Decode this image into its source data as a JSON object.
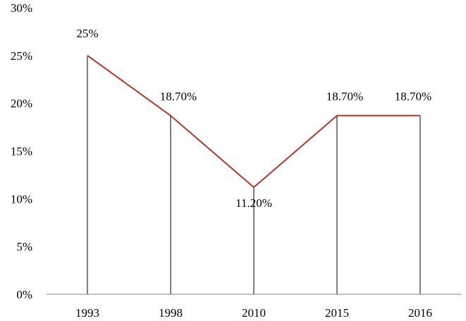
{
  "chart_data": {
    "type": "line",
    "categories": [
      "1993",
      "1998",
      "2010",
      "2015",
      "2016"
    ],
    "series": [
      {
        "values": [
          25,
          18.7,
          11.2,
          18.7,
          18.7
        ]
      }
    ],
    "data_labels": [
      "25%",
      "18.70%",
      "11.20%",
      "18.70%",
      "18.70%"
    ],
    "y_ticks": [
      "0%",
      "5%",
      "10%",
      "15%",
      "20%",
      "25%",
      "30%"
    ],
    "ylim": [
      0,
      30
    ],
    "drop_lines": true,
    "grid": false,
    "colors": {
      "line": "#b0362c",
      "axis": "#888888",
      "drop_line": "#000000"
    }
  }
}
